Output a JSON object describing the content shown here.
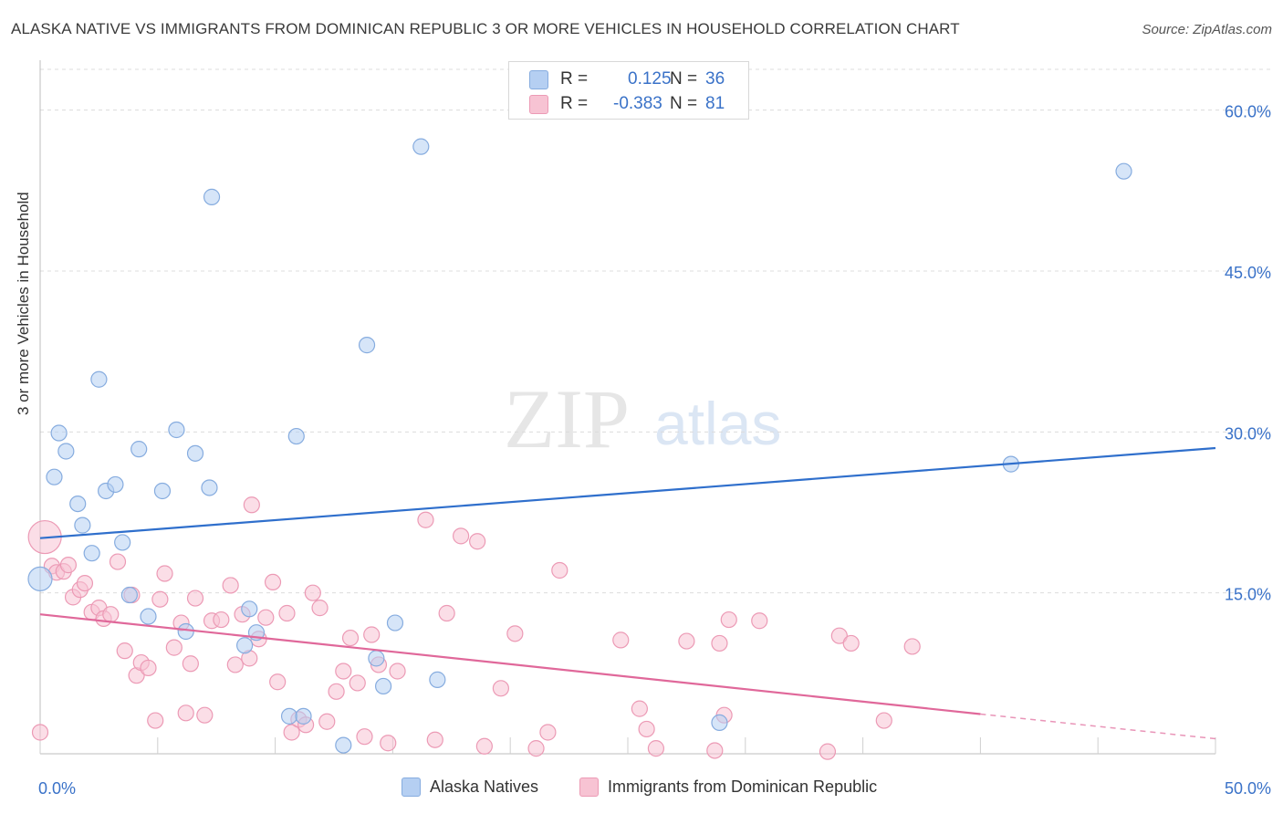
{
  "title": "ALASKA NATIVE VS IMMIGRANTS FROM DOMINICAN REPUBLIC 3 OR MORE VEHICLES IN HOUSEHOLD CORRELATION CHART",
  "source": "Source: ZipAtlas.com",
  "watermark": {
    "zip": "ZIP",
    "atlas": "atlas"
  },
  "legend_top": [
    {
      "r_label": "R =",
      "r_value": "0.125",
      "n_label": "N =",
      "n_value": "36"
    },
    {
      "r_label": "R =",
      "r_value": "-0.383",
      "n_label": "N =",
      "n_value": "81"
    }
  ],
  "colors": {
    "blue_fill": "#b5cff2",
    "blue_stroke": "#86acdf",
    "blue_line": "#2f6fcc",
    "pink_fill": "#f7c3d3",
    "pink_stroke": "#ec9ab5",
    "pink_line": "#e0689a",
    "axis_text": "#3a72c8",
    "grid": "#dcdcdc"
  },
  "chart_data": {
    "type": "scatter",
    "title": "ALASKA NATIVE VS IMMIGRANTS FROM DOMINICAN REPUBLIC 3 OR MORE VEHICLES IN HOUSEHOLD CORRELATION CHART",
    "xlabel": "",
    "ylabel": "3 or more Vehicles in Household",
    "xlim": [
      0,
      50
    ],
    "ylim": [
      0,
      60
    ],
    "x_tick_labels": [
      "0.0%",
      "50.0%"
    ],
    "y_ticks": [
      15,
      30,
      45,
      60
    ],
    "y_tick_labels": [
      "15.0%",
      "30.0%",
      "45.0%",
      "60.0%"
    ],
    "grid": "horizontal dashed",
    "legend_placement": "top-center and bottom",
    "series": [
      {
        "name": "Alaska Natives",
        "color": "#b5cff2",
        "trend": {
          "x": [
            0,
            50
          ],
          "y": [
            20.1,
            28.5
          ]
        },
        "points": [
          [
            0.0,
            16.3
          ],
          [
            0.6,
            25.8
          ],
          [
            0.8,
            29.9
          ],
          [
            1.1,
            28.2
          ],
          [
            1.6,
            23.3
          ],
          [
            1.8,
            21.3
          ],
          [
            2.2,
            18.7
          ],
          [
            2.5,
            34.9
          ],
          [
            2.8,
            24.5
          ],
          [
            3.2,
            25.1
          ],
          [
            3.5,
            19.7
          ],
          [
            3.8,
            14.8
          ],
          [
            4.2,
            28.4
          ],
          [
            4.6,
            12.8
          ],
          [
            5.2,
            24.5
          ],
          [
            5.8,
            30.2
          ],
          [
            6.2,
            11.4
          ],
          [
            6.6,
            28.0
          ],
          [
            7.3,
            51.9
          ],
          [
            7.2,
            24.8
          ],
          [
            8.7,
            10.1
          ],
          [
            8.9,
            13.5
          ],
          [
            9.2,
            11.3
          ],
          [
            10.6,
            3.5
          ],
          [
            10.9,
            29.6
          ],
          [
            11.2,
            3.5
          ],
          [
            12.9,
            0.8
          ],
          [
            13.9,
            38.1
          ],
          [
            14.3,
            8.9
          ],
          [
            14.6,
            6.3
          ],
          [
            15.1,
            12.2
          ],
          [
            16.2,
            56.6
          ],
          [
            16.9,
            6.9
          ],
          [
            28.9,
            2.9
          ],
          [
            41.3,
            27.0
          ],
          [
            46.1,
            54.3
          ]
        ]
      },
      {
        "name": "Immigrants from Dominican Republic",
        "color": "#f7c3d3",
        "trend": {
          "x": [
            0,
            40
          ],
          "y": [
            13.0,
            3.7
          ],
          "dashed_to": [
            50,
            1.4
          ]
        },
        "points": [
          [
            0.2,
            20.2
          ],
          [
            0.5,
            17.5
          ],
          [
            0.7,
            16.9
          ],
          [
            1.0,
            17.0
          ],
          [
            1.2,
            17.6
          ],
          [
            1.4,
            14.6
          ],
          [
            1.7,
            15.3
          ],
          [
            1.9,
            15.9
          ],
          [
            2.2,
            13.2
          ],
          [
            2.5,
            13.6
          ],
          [
            2.7,
            12.6
          ],
          [
            3.0,
            13.0
          ],
          [
            3.3,
            17.9
          ],
          [
            3.6,
            9.6
          ],
          [
            3.9,
            14.8
          ],
          [
            4.1,
            7.3
          ],
          [
            4.3,
            8.5
          ],
          [
            4.6,
            8.0
          ],
          [
            4.9,
            3.1
          ],
          [
            5.1,
            14.4
          ],
          [
            5.3,
            16.8
          ],
          [
            5.7,
            9.9
          ],
          [
            6.0,
            12.2
          ],
          [
            6.2,
            3.8
          ],
          [
            6.4,
            8.4
          ],
          [
            6.6,
            14.5
          ],
          [
            7.0,
            3.6
          ],
          [
            7.3,
            12.4
          ],
          [
            7.7,
            12.5
          ],
          [
            8.1,
            15.7
          ],
          [
            8.3,
            8.3
          ],
          [
            8.6,
            13.0
          ],
          [
            8.9,
            8.9
          ],
          [
            9.0,
            23.2
          ],
          [
            9.3,
            10.7
          ],
          [
            9.6,
            12.7
          ],
          [
            9.9,
            16.0
          ],
          [
            10.1,
            6.7
          ],
          [
            10.5,
            13.1
          ],
          [
            10.7,
            2.0
          ],
          [
            11.0,
            3.2
          ],
          [
            11.3,
            2.7
          ],
          [
            11.6,
            15.0
          ],
          [
            11.9,
            13.6
          ],
          [
            12.2,
            3.0
          ],
          [
            12.6,
            5.8
          ],
          [
            12.9,
            7.7
          ],
          [
            13.2,
            10.8
          ],
          [
            13.5,
            6.6
          ],
          [
            13.8,
            1.6
          ],
          [
            14.1,
            11.1
          ],
          [
            14.4,
            8.3
          ],
          [
            14.8,
            1.0
          ],
          [
            15.2,
            7.7
          ],
          [
            16.4,
            21.8
          ],
          [
            16.8,
            1.3
          ],
          [
            17.3,
            13.1
          ],
          [
            17.9,
            20.3
          ],
          [
            18.6,
            19.8
          ],
          [
            18.9,
            0.7
          ],
          [
            19.6,
            6.1
          ],
          [
            20.2,
            11.2
          ],
          [
            21.1,
            0.5
          ],
          [
            21.6,
            2.0
          ],
          [
            22.1,
            17.1
          ],
          [
            24.7,
            10.6
          ],
          [
            25.5,
            4.2
          ],
          [
            25.8,
            2.3
          ],
          [
            26.2,
            0.5
          ],
          [
            27.5,
            10.5
          ],
          [
            28.7,
            0.3
          ],
          [
            28.9,
            10.3
          ],
          [
            29.1,
            3.6
          ],
          [
            29.3,
            12.5
          ],
          [
            30.6,
            12.4
          ],
          [
            33.5,
            0.2
          ],
          [
            34.0,
            11.0
          ],
          [
            34.5,
            10.3
          ],
          [
            35.9,
            3.1
          ],
          [
            37.1,
            10.0
          ],
          [
            0.0,
            2.0
          ]
        ]
      }
    ]
  },
  "legend_bottom": [
    {
      "label": "Alaska Natives",
      "color": "#b5cff2"
    },
    {
      "label": "Immigrants from Dominican Republic",
      "color": "#f7c3d3"
    }
  ]
}
